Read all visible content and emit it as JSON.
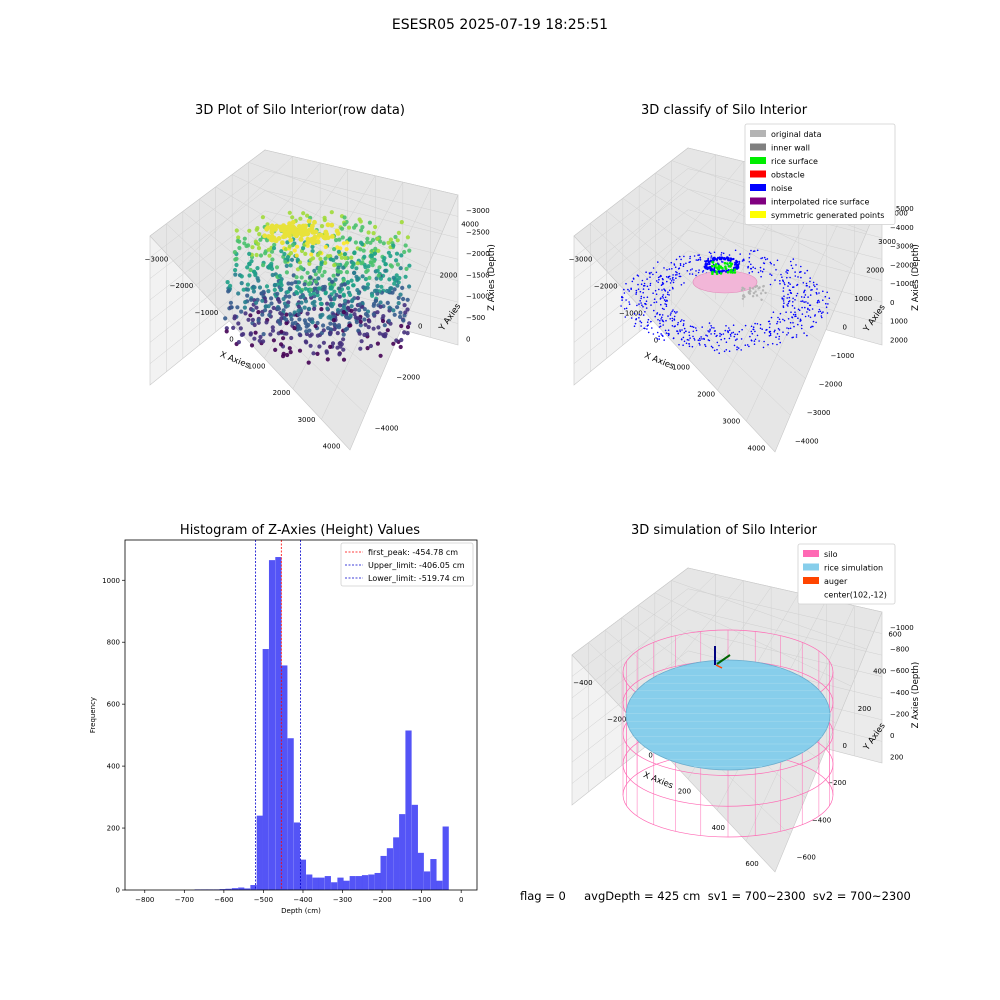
{
  "suptitle": "ESESR05 2025-07-19 18:25:51",
  "status_text": "flag = 0     avgDepth = 425 cm  sv1 = 700~2300  sv2 = 700~2300",
  "colors": {
    "hist_bar": "#4b4bf5",
    "first_peak_line": "#ff0000",
    "limit_lines": "#0000cc",
    "silo": "#ff69b4",
    "rice": "#87ceeb",
    "auger": "#ff4500"
  },
  "chart_data": [
    {
      "type": "scatter",
      "title": "3D Plot of Silo Interior(row data)",
      "xlabel": "X Axies",
      "ylabel": "Y Axies",
      "zlabel": "Z Axies (Depth)",
      "x_ticks": [
        "−3000",
        "−2000",
        "−1000",
        "0",
        "1000",
        "2000",
        "3000",
        "4000"
      ],
      "y_ticks": [
        "−4000",
        "−2000",
        "0",
        "2000",
        "4000"
      ],
      "z_ticks": [
        "0",
        "−500",
        "−1000",
        "−1500",
        "−2000",
        "−2500",
        "−3000"
      ],
      "colormap": "viridis"
    },
    {
      "type": "scatter",
      "title": "3D classify of Silo Interior",
      "xlabel": "X Axies",
      "ylabel": "Y Axies",
      "zlabel": "Z Axies (Depth)",
      "x_ticks": [
        "−3000",
        "−2000",
        "−1000",
        "0",
        "1000",
        "2000",
        "3000",
        "4000"
      ],
      "y_ticks": [
        "−4000",
        "−3000",
        "−2000",
        "−1000",
        "0",
        "1000",
        "2000",
        "3000",
        "4000"
      ],
      "z_ticks": [
        "2000",
        "1000",
        "0",
        "−1000",
        "−2000",
        "−3000",
        "−4000",
        "−5000"
      ],
      "legend": [
        {
          "label": "original data",
          "color": "#b4b4b4"
        },
        {
          "label": "inner wall",
          "color": "#808080"
        },
        {
          "label": "rice surface",
          "color": "#00ee00"
        },
        {
          "label": "obstacle",
          "color": "#ff0000"
        },
        {
          "label": "noise",
          "color": "#0000ff"
        },
        {
          "label": "interpolated rice surface",
          "color": "#800080"
        },
        {
          "label": "symmetric generated points",
          "color": "#ffff00"
        }
      ]
    },
    {
      "type": "bar",
      "title": "Histogram of Z-Axies (Height) Values",
      "xlabel": "Depth (cm)",
      "ylabel": "Frequency",
      "xlim": [
        -850,
        40
      ],
      "ylim": [
        0,
        1130
      ],
      "x_ticks": [
        -800,
        -700,
        -600,
        -500,
        -400,
        -300,
        -200,
        -100,
        0
      ],
      "y_ticks": [
        0,
        200,
        400,
        600,
        800,
        1000
      ],
      "bin_width": 15.7,
      "bins_left": [
        -674,
        -658,
        -643,
        -627,
        -611,
        -596,
        -580,
        -564,
        -549,
        -533,
        -517,
        -502,
        -486,
        -470,
        -455,
        -439,
        -423,
        -408,
        -392,
        -376,
        -361,
        -345,
        -329,
        -313,
        -298,
        -282,
        -266,
        -251,
        -235,
        -219,
        -204,
        -188,
        -172,
        -157,
        -141,
        -125,
        -110,
        -94,
        -78,
        -63,
        -47,
        -31,
        -16
      ],
      "counts": [
        2,
        2,
        2,
        2,
        3,
        4,
        6,
        8,
        5,
        16,
        240,
        778,
        1065,
        1075,
        725,
        490,
        218,
        98,
        50,
        40,
        40,
        45,
        25,
        40,
        30,
        45,
        45,
        48,
        50,
        55,
        110,
        135,
        170,
        245,
        515,
        275,
        120,
        60,
        100,
        30,
        205,
        0,
        0
      ],
      "lines": [
        {
          "label": "first_peak: -454.78 cm",
          "x": -454.78,
          "color": "#ff0000"
        },
        {
          "label": "Upper_limit: -406.05 cm",
          "x": -406.05,
          "color": "#0000cc"
        },
        {
          "label": "Lower_limit: -519.74 cm",
          "x": -519.74,
          "color": "#0000cc"
        }
      ]
    },
    {
      "type": "scatter",
      "title": "3D simulation of Silo Interior",
      "xlabel": "X Axies",
      "ylabel": "Y Axies",
      "zlabel": "Z Axies (Depth)",
      "x_ticks": [
        "−400",
        "−200",
        "0",
        "200",
        "400",
        "600"
      ],
      "y_ticks": [
        "−600",
        "−400",
        "−200",
        "0",
        "200",
        "400",
        "600"
      ],
      "z_ticks": [
        "200",
        "0",
        "−200",
        "−400",
        "−600",
        "−800",
        "−1000"
      ],
      "legend": [
        {
          "label": "silo",
          "color": "#ff69b4"
        },
        {
          "label": "rice simulation",
          "color": "#87ceeb"
        },
        {
          "label": "auger",
          "color": "#ff4500"
        },
        {
          "label": "center(102,-12)",
          "color": "#ffffff"
        }
      ]
    }
  ]
}
